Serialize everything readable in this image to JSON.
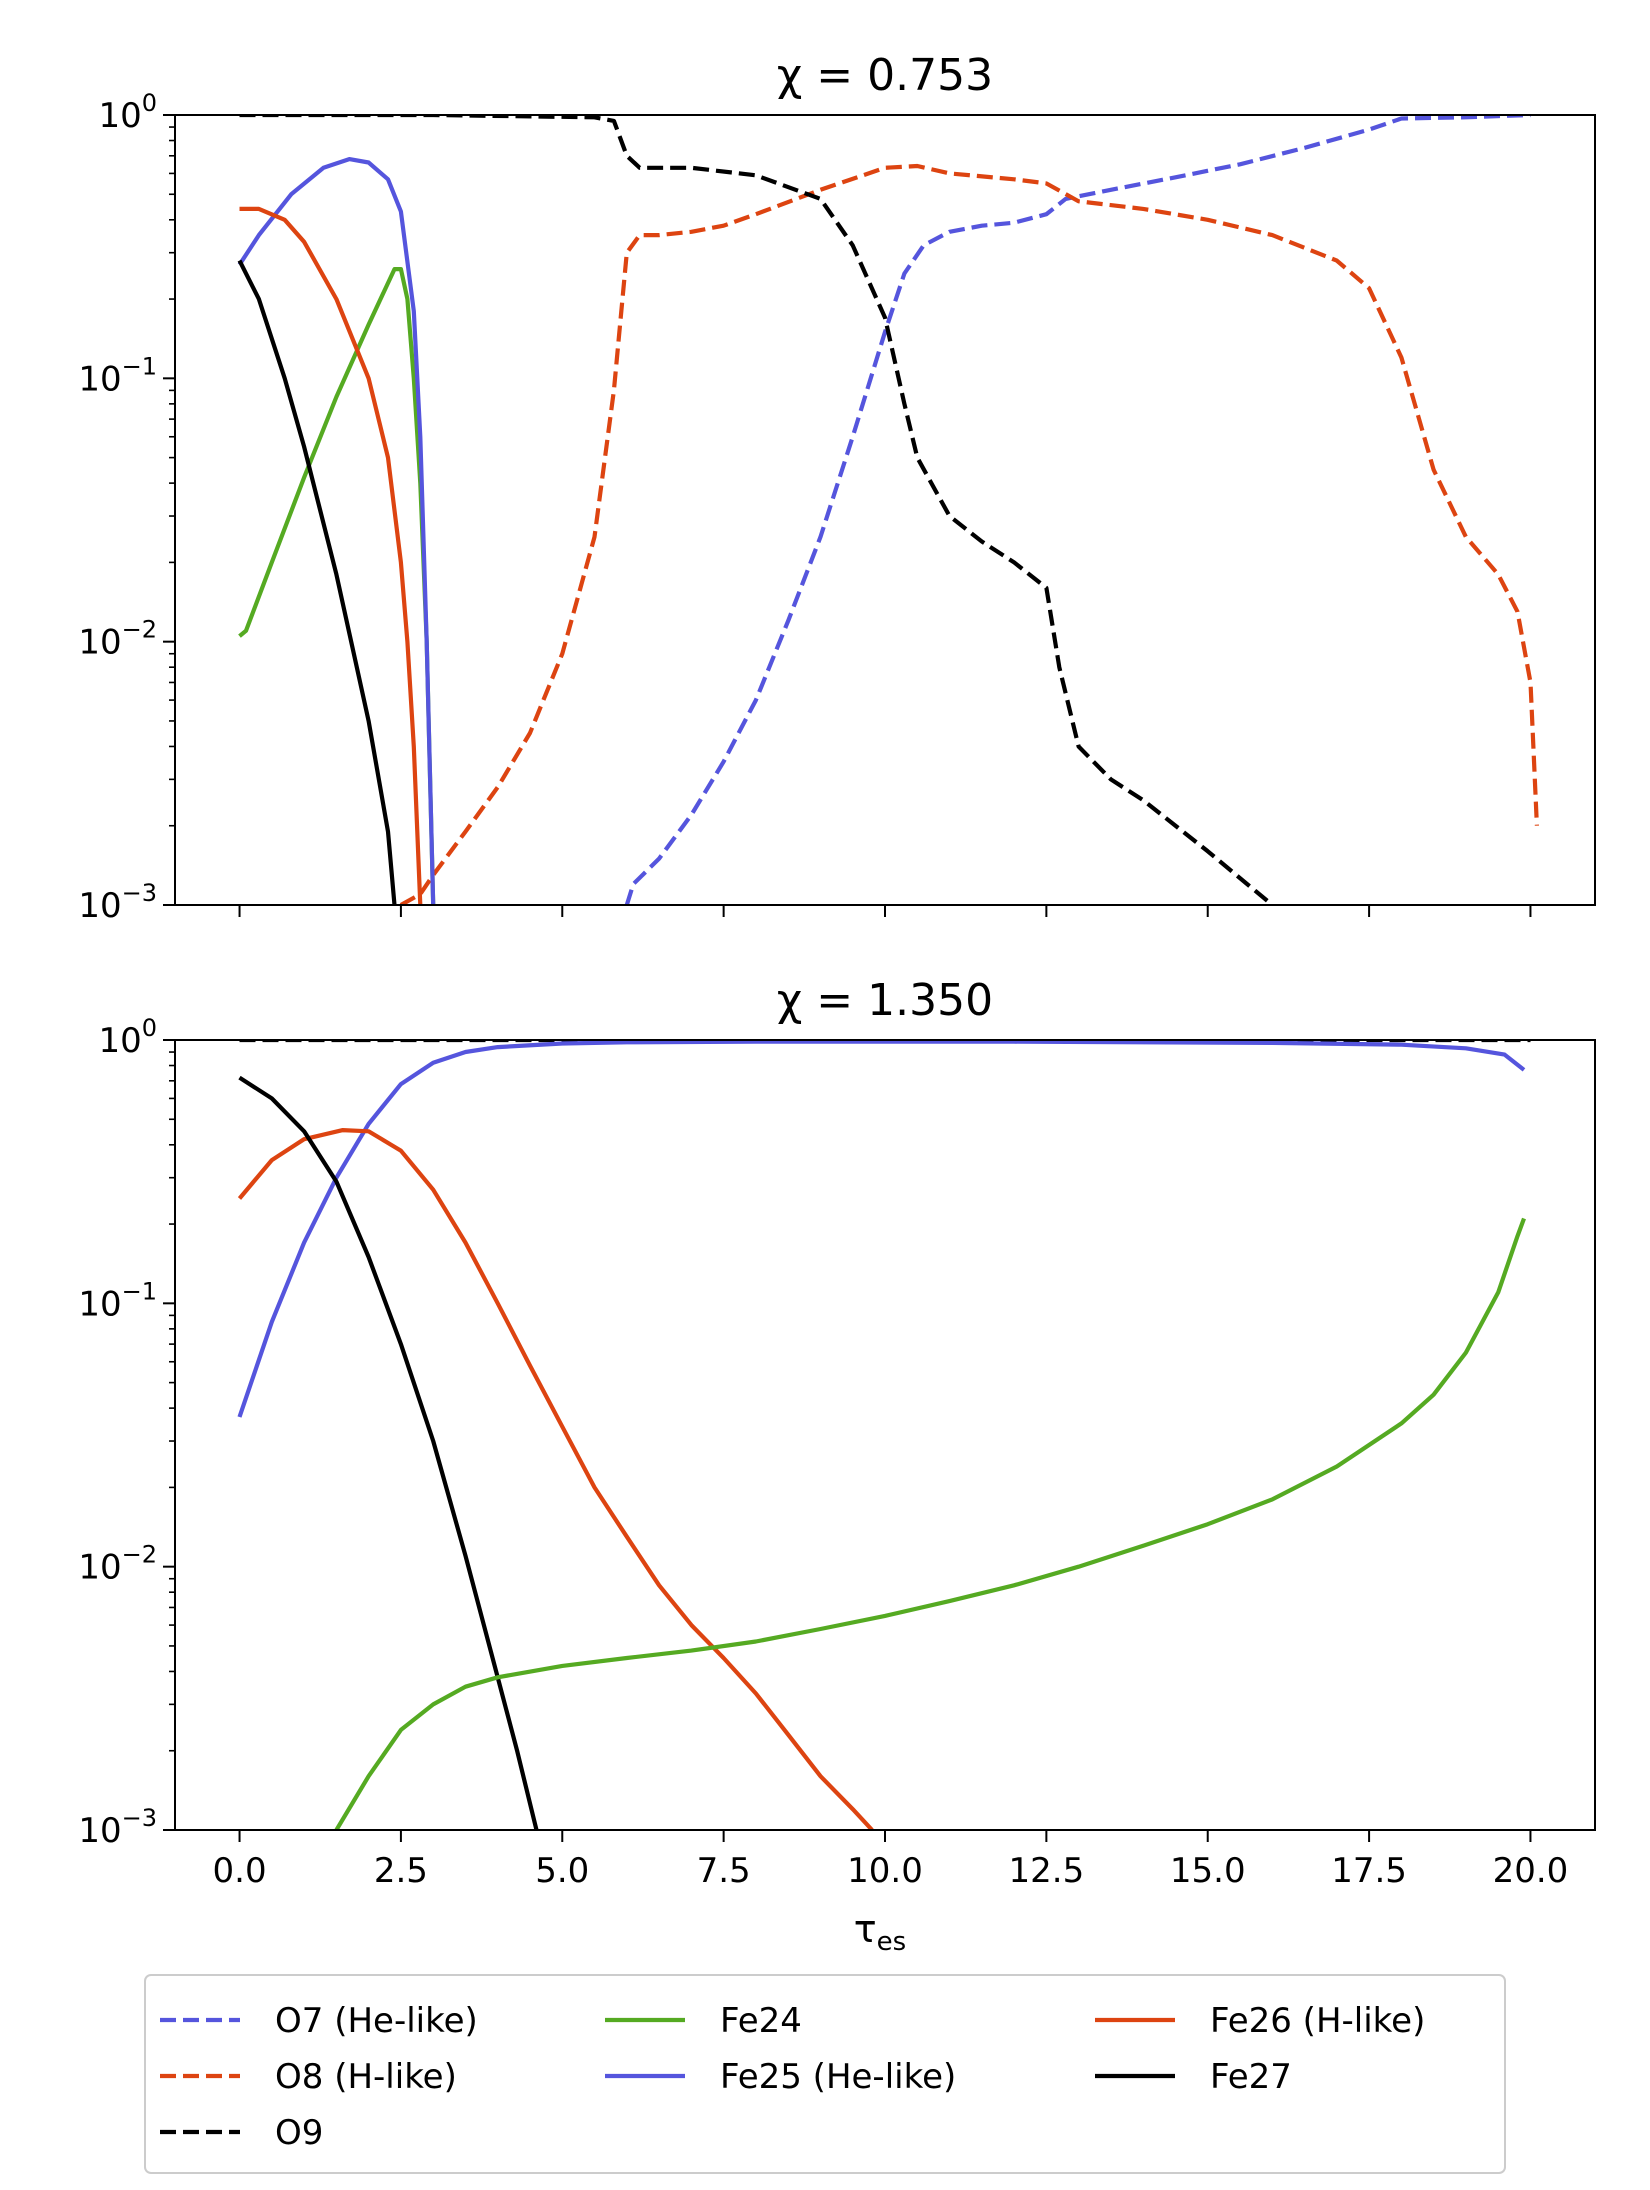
{
  "chart_data": [
    {
      "type": "line",
      "title": "χ = 0.753",
      "xlabel": "",
      "ylabel": "",
      "xlim": [
        -1,
        21
      ],
      "ylim": [
        0.001,
        1
      ],
      "yscale": "log",
      "x_ticks": [
        0,
        2.5,
        5,
        7.5,
        10,
        12.5,
        15,
        17.5,
        20
      ],
      "y_ticks": [
        {
          "base": "10",
          "exp": "0",
          "value": 1
        },
        {
          "base": "10",
          "exp": "−1",
          "value": 0.1
        },
        {
          "base": "10",
          "exp": "−2",
          "value": 0.01
        },
        {
          "base": "10",
          "exp": "−3",
          "value": 0.001
        }
      ],
      "series": [
        {
          "name": "O7 (He-like)",
          "color": "#5555dd",
          "dash": true,
          "points": [
            [
              6.0,
              0.001
            ],
            [
              6.1,
              0.0012
            ],
            [
              6.5,
              0.0015
            ],
            [
              7.0,
              0.0022
            ],
            [
              7.5,
              0.0035
            ],
            [
              8.0,
              0.006
            ],
            [
              8.5,
              0.012
            ],
            [
              9.0,
              0.025
            ],
            [
              9.5,
              0.06
            ],
            [
              10.0,
              0.15
            ],
            [
              10.3,
              0.25
            ],
            [
              10.6,
              0.32
            ],
            [
              11.0,
              0.36
            ],
            [
              11.5,
              0.38
            ],
            [
              12.0,
              0.39
            ],
            [
              12.5,
              0.42
            ],
            [
              12.8,
              0.48
            ],
            [
              13.5,
              0.52
            ],
            [
              14.5,
              0.58
            ],
            [
              15.5,
              0.65
            ],
            [
              16.5,
              0.75
            ],
            [
              17.5,
              0.88
            ],
            [
              18.0,
              0.97
            ],
            [
              19.0,
              0.98
            ],
            [
              20.0,
              1.0
            ]
          ]
        },
        {
          "name": "O8 (H-like)",
          "color": "#dd4411",
          "dash": true,
          "points": [
            [
              2.5,
              0.001
            ],
            [
              2.8,
              0.0011
            ],
            [
              3.0,
              0.0013
            ],
            [
              3.5,
              0.0019
            ],
            [
              4.0,
              0.0028
            ],
            [
              4.5,
              0.0045
            ],
            [
              5.0,
              0.009
            ],
            [
              5.5,
              0.025
            ],
            [
              5.8,
              0.09
            ],
            [
              6.0,
              0.3
            ],
            [
              6.2,
              0.35
            ],
            [
              6.5,
              0.35
            ],
            [
              7.0,
              0.36
            ],
            [
              7.5,
              0.38
            ],
            [
              8.0,
              0.42
            ],
            [
              9.0,
              0.52
            ],
            [
              10.0,
              0.63
            ],
            [
              10.5,
              0.64
            ],
            [
              11.0,
              0.6
            ],
            [
              12.0,
              0.57
            ],
            [
              12.5,
              0.55
            ],
            [
              13.0,
              0.47
            ],
            [
              14.0,
              0.44
            ],
            [
              15.0,
              0.4
            ],
            [
              16.0,
              0.35
            ],
            [
              17.0,
              0.28
            ],
            [
              17.5,
              0.22
            ],
            [
              18.0,
              0.12
            ],
            [
              18.5,
              0.045
            ],
            [
              19.0,
              0.025
            ],
            [
              19.5,
              0.018
            ],
            [
              19.8,
              0.013
            ],
            [
              20.0,
              0.007
            ],
            [
              20.1,
              0.002
            ]
          ]
        },
        {
          "name": "O9",
          "color": "#000000",
          "dash": true,
          "points": [
            [
              0.0,
              1.0
            ],
            [
              3.0,
              1.0
            ],
            [
              5.5,
              0.98
            ],
            [
              5.8,
              0.95
            ],
            [
              6.0,
              0.7
            ],
            [
              6.2,
              0.63
            ],
            [
              7.0,
              0.63
            ],
            [
              8.0,
              0.59
            ],
            [
              9.0,
              0.48
            ],
            [
              9.5,
              0.32
            ],
            [
              10.0,
              0.17
            ],
            [
              10.3,
              0.08
            ],
            [
              10.5,
              0.05
            ],
            [
              11.0,
              0.03
            ],
            [
              11.5,
              0.024
            ],
            [
              12.0,
              0.02
            ],
            [
              12.5,
              0.016
            ],
            [
              12.7,
              0.008
            ],
            [
              13.0,
              0.004
            ],
            [
              13.5,
              0.003
            ],
            [
              14.0,
              0.0025
            ],
            [
              15.0,
              0.0016
            ],
            [
              16.0,
              0.001
            ]
          ]
        },
        {
          "name": "Fe24",
          "color": "#55aa22",
          "dash": false,
          "points": [
            [
              0.0,
              0.0105
            ],
            [
              0.1,
              0.011
            ],
            [
              0.5,
              0.02
            ],
            [
              1.0,
              0.042
            ],
            [
              1.5,
              0.085
            ],
            [
              2.0,
              0.16
            ],
            [
              2.4,
              0.26
            ],
            [
              2.5,
              0.26
            ],
            [
              2.6,
              0.2
            ],
            [
              2.7,
              0.1
            ],
            [
              2.8,
              0.04
            ],
            [
              2.9,
              0.01
            ],
            [
              3.0,
              0.001
            ]
          ]
        },
        {
          "name": "Fe25 (He-like)",
          "color": "#5555dd",
          "dash": false,
          "points": [
            [
              0.0,
              0.27
            ],
            [
              0.3,
              0.35
            ],
            [
              0.8,
              0.5
            ],
            [
              1.3,
              0.63
            ],
            [
              1.7,
              0.68
            ],
            [
              2.0,
              0.66
            ],
            [
              2.3,
              0.57
            ],
            [
              2.5,
              0.43
            ],
            [
              2.7,
              0.18
            ],
            [
              2.8,
              0.06
            ],
            [
              2.9,
              0.01
            ],
            [
              3.0,
              0.001
            ]
          ]
        },
        {
          "name": "Fe26 (H-like)",
          "color": "#dd4411",
          "dash": false,
          "points": [
            [
              0.0,
              0.44
            ],
            [
              0.3,
              0.44
            ],
            [
              0.7,
              0.4
            ],
            [
              1.0,
              0.33
            ],
            [
              1.5,
              0.2
            ],
            [
              2.0,
              0.1
            ],
            [
              2.3,
              0.05
            ],
            [
              2.5,
              0.02
            ],
            [
              2.6,
              0.01
            ],
            [
              2.7,
              0.004
            ],
            [
              2.8,
              0.001
            ]
          ]
        },
        {
          "name": "Fe27",
          "color": "#000000",
          "dash": false,
          "points": [
            [
              0.0,
              0.28
            ],
            [
              0.3,
              0.2
            ],
            [
              0.7,
              0.1
            ],
            [
              1.0,
              0.055
            ],
            [
              1.5,
              0.018
            ],
            [
              2.0,
              0.005
            ],
            [
              2.3,
              0.0019
            ],
            [
              2.4,
              0.001
            ]
          ]
        }
      ]
    },
    {
      "type": "line",
      "title": "χ = 1.350",
      "xlabel": "τ_es",
      "xlabel_main": "τ",
      "xlabel_sub": "es",
      "ylabel": "",
      "xlim": [
        -1,
        21
      ],
      "ylim": [
        0.001,
        1
      ],
      "yscale": "log",
      "x_ticks": [
        0,
        2.5,
        5,
        7.5,
        10,
        12.5,
        15,
        17.5,
        20
      ],
      "x_tick_labels": [
        "0.0",
        "2.5",
        "5.0",
        "7.5",
        "10.0",
        "12.5",
        "15.0",
        "17.5",
        "20.0"
      ],
      "y_ticks": [
        {
          "base": "10",
          "exp": "0",
          "value": 1
        },
        {
          "base": "10",
          "exp": "−1",
          "value": 0.1
        },
        {
          "base": "10",
          "exp": "−2",
          "value": 0.01
        },
        {
          "base": "10",
          "exp": "−3",
          "value": 0.001
        }
      ],
      "series": [
        {
          "name": "O9",
          "color": "#000000",
          "dash": true,
          "points": [
            [
              0.0,
              1.0
            ],
            [
              20.0,
              1.0
            ]
          ]
        },
        {
          "name": "Fe25 (He-like)",
          "color": "#5555dd",
          "dash": false,
          "points": [
            [
              0.0,
              0.037
            ],
            [
              0.5,
              0.085
            ],
            [
              1.0,
              0.17
            ],
            [
              1.5,
              0.3
            ],
            [
              2.0,
              0.48
            ],
            [
              2.5,
              0.68
            ],
            [
              3.0,
              0.82
            ],
            [
              3.5,
              0.9
            ],
            [
              4.0,
              0.94
            ],
            [
              5.0,
              0.97
            ],
            [
              6.0,
              0.98
            ],
            [
              8.0,
              0.985
            ],
            [
              12.0,
              0.985
            ],
            [
              16.0,
              0.975
            ],
            [
              18.0,
              0.96
            ],
            [
              19.0,
              0.93
            ],
            [
              19.6,
              0.88
            ],
            [
              19.9,
              0.77
            ]
          ]
        },
        {
          "name": "Fe26 (H-like)",
          "color": "#dd4411",
          "dash": false,
          "points": [
            [
              0.0,
              0.25
            ],
            [
              0.5,
              0.35
            ],
            [
              1.0,
              0.42
            ],
            [
              1.6,
              0.455
            ],
            [
              2.0,
              0.45
            ],
            [
              2.5,
              0.38
            ],
            [
              3.0,
              0.27
            ],
            [
              3.5,
              0.17
            ],
            [
              4.0,
              0.1
            ],
            [
              4.5,
              0.058
            ],
            [
              5.0,
              0.034
            ],
            [
              5.5,
              0.02
            ],
            [
              6.0,
              0.013
            ],
            [
              6.5,
              0.0085
            ],
            [
              7.0,
              0.006
            ],
            [
              7.5,
              0.0045
            ],
            [
              8.0,
              0.0033
            ],
            [
              8.5,
              0.0023
            ],
            [
              9.0,
              0.0016
            ],
            [
              9.5,
              0.0012
            ],
            [
              9.8,
              0.001
            ]
          ]
        },
        {
          "name": "Fe27",
          "color": "#000000",
          "dash": false,
          "points": [
            [
              0.0,
              0.72
            ],
            [
              0.5,
              0.6
            ],
            [
              1.0,
              0.45
            ],
            [
              1.5,
              0.29
            ],
            [
              2.0,
              0.15
            ],
            [
              2.5,
              0.07
            ],
            [
              3.0,
              0.03
            ],
            [
              3.5,
              0.011
            ],
            [
              4.0,
              0.0038
            ],
            [
              4.3,
              0.002
            ],
            [
              4.6,
              0.001
            ]
          ]
        },
        {
          "name": "Fe24",
          "color": "#55aa22",
          "dash": false,
          "points": [
            [
              1.5,
              0.001
            ],
            [
              2.0,
              0.0016
            ],
            [
              2.5,
              0.0024
            ],
            [
              3.0,
              0.003
            ],
            [
              3.5,
              0.0035
            ],
            [
              4.0,
              0.0038
            ],
            [
              5.0,
              0.0042
            ],
            [
              6.0,
              0.0045
            ],
            [
              7.0,
              0.0048
            ],
            [
              8.0,
              0.0052
            ],
            [
              9.0,
              0.0058
            ],
            [
              10.0,
              0.0065
            ],
            [
              11.0,
              0.0074
            ],
            [
              12.0,
              0.0085
            ],
            [
              13.0,
              0.01
            ],
            [
              14.0,
              0.012
            ],
            [
              15.0,
              0.0145
            ],
            [
              16.0,
              0.018
            ],
            [
              17.0,
              0.024
            ],
            [
              18.0,
              0.035
            ],
            [
              18.5,
              0.045
            ],
            [
              19.0,
              0.065
            ],
            [
              19.5,
              0.11
            ],
            [
              19.8,
              0.18
            ],
            [
              19.9,
              0.21
            ]
          ]
        }
      ]
    }
  ],
  "legend": {
    "placement": "bottom",
    "columns": 3,
    "entries": [
      {
        "label": "O7 (He-like)",
        "color": "#5555dd",
        "dash": true
      },
      {
        "label": "Fe24",
        "color": "#55aa22",
        "dash": false
      },
      {
        "label": "Fe26 (H-like)",
        "color": "#dd4411",
        "dash": false
      },
      {
        "label": "O8 (H-like)",
        "color": "#dd4411",
        "dash": true
      },
      {
        "label": "Fe25 (He-like)",
        "color": "#5555dd",
        "dash": false
      },
      {
        "label": "Fe27",
        "color": "#000000",
        "dash": false
      },
      {
        "label": "O9",
        "color": "#000000",
        "dash": true
      }
    ]
  }
}
